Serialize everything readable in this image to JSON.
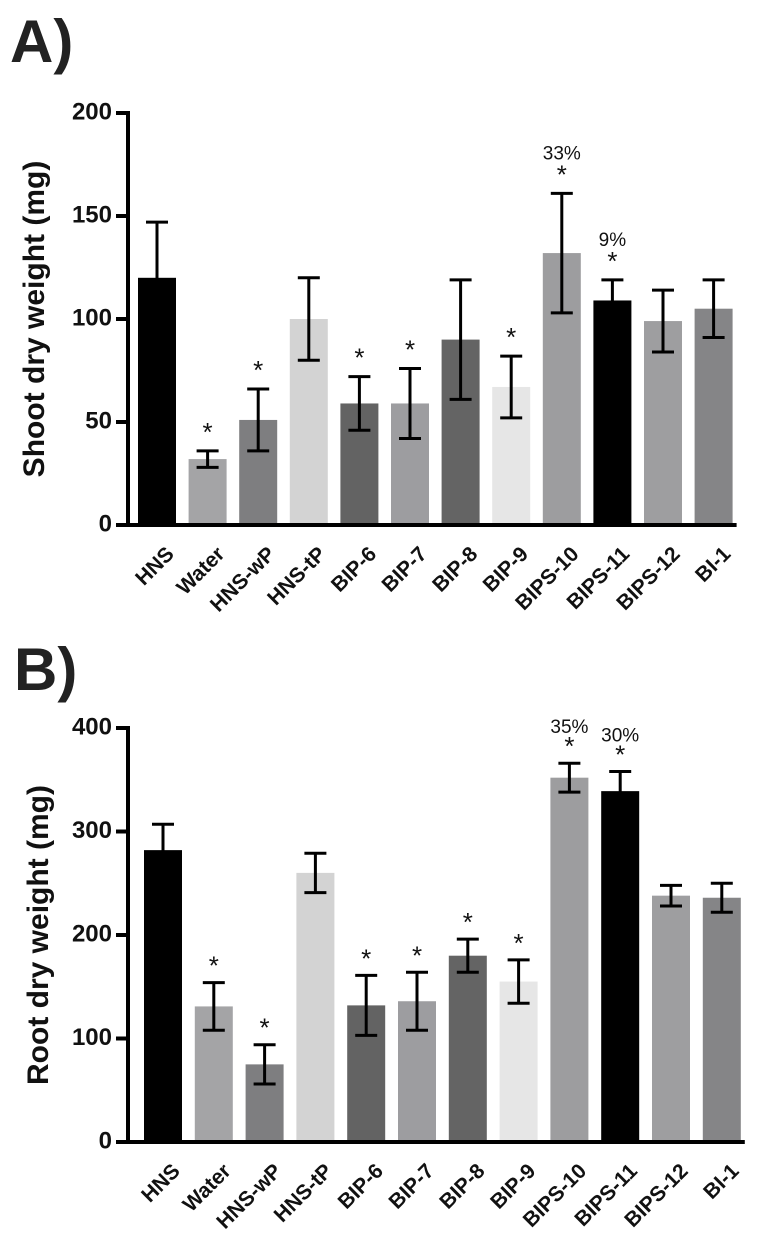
{
  "bar_colors": [
    "#000000",
    "#a4a4a6",
    "#7e7e80",
    "#d3d3d3",
    "#636363",
    "#9d9da0",
    "#646464",
    "#e6e6e6",
    "#9d9d9f",
    "#000000",
    "#9e9ea0",
    "#858587"
  ],
  "chart_data": [
    {
      "panel": "A)",
      "type": "bar",
      "ylabel": "Shoot dry weight (mg)",
      "xlabel": "",
      "ylim": [
        0,
        200
      ],
      "yticks": [
        0,
        50,
        100,
        150,
        200
      ],
      "categories": [
        "HNS",
        "Water",
        "HNS-wP",
        "HNS-tP",
        "BIP-6",
        "BIP-7",
        "BIP-8",
        "BIP-9",
        "BIPS-10",
        "BIPS-11",
        "BIPS-12",
        "BI-1"
      ],
      "values": [
        120,
        32,
        51,
        100,
        59,
        59,
        90,
        67,
        132,
        109,
        99,
        105
      ],
      "errors": [
        27,
        4,
        15,
        20,
        13,
        17,
        29,
        15,
        29,
        10,
        15,
        14
      ],
      "significant": [
        false,
        true,
        true,
        false,
        true,
        true,
        false,
        true,
        true,
        true,
        false,
        false
      ],
      "annotations": [
        "",
        "",
        "",
        "",
        "",
        "",
        "",
        "",
        "33%",
        "9%",
        "",
        ""
      ]
    },
    {
      "panel": "B)",
      "type": "bar",
      "ylabel": "Root dry weight (mg)",
      "xlabel": "",
      "ylim": [
        0,
        400
      ],
      "yticks": [
        0,
        100,
        200,
        300,
        400
      ],
      "categories": [
        "HNS",
        "Water",
        "HNS-wP",
        "HNS-tP",
        "BIP-6",
        "BIP-7",
        "BIP-8",
        "BIP-9",
        "BIPS-10",
        "BIPS-11",
        "BIPS-12",
        "BI-1"
      ],
      "values": [
        282,
        131,
        75,
        260,
        132,
        136,
        180,
        155,
        352,
        339,
        238,
        236
      ],
      "errors": [
        25,
        23,
        19,
        19,
        29,
        28,
        16,
        21,
        14,
        19,
        10,
        14
      ],
      "significant": [
        false,
        true,
        true,
        false,
        true,
        true,
        true,
        true,
        true,
        true,
        false,
        false
      ],
      "annotations": [
        "",
        "",
        "",
        "",
        "",
        "",
        "",
        "",
        "35%",
        "30%",
        "",
        ""
      ]
    }
  ]
}
